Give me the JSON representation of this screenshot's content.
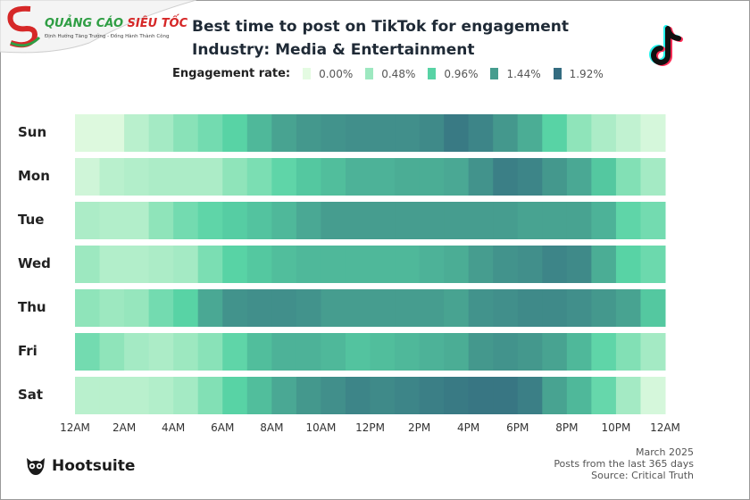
{
  "watermark": {
    "brand": "QUẢNG CÁO SIÊU TỐC",
    "tagline": "Định Hướng Tăng Trưởng - Đồng Hành Thành Công"
  },
  "header": {
    "title": "Best time to post on TikTok for engagement",
    "subtitle": "Industry: Media & Entertainment",
    "platform_icon": "tiktok-logo"
  },
  "footer": {
    "brand": "Hootsuite",
    "date": "March 2025",
    "note": "Posts from the last 365 days",
    "source": "Source: Critical Truth"
  },
  "chart_data": {
    "type": "heatmap",
    "legend": {
      "title": "Engagement rate:",
      "stops": [
        {
          "label": "0.00%",
          "value": 0.0,
          "color": "#e4fbe2"
        },
        {
          "label": "0.48%",
          "value": 0.48,
          "color": "#9de8c0"
        },
        {
          "label": "0.96%",
          "value": 0.96,
          "color": "#58d3a5"
        },
        {
          "label": "1.44%",
          "value": 1.44,
          "color": "#469d8f"
        },
        {
          "label": "1.92%",
          "value": 1.92,
          "color": "#346c80"
        }
      ]
    },
    "unit": "%",
    "rows": [
      "Sun",
      "Mon",
      "Tue",
      "Wed",
      "Thu",
      "Fri",
      "Sat"
    ],
    "x_tick_labels": [
      "12AM",
      "2AM",
      "4AM",
      "6AM",
      "8AM",
      "10AM",
      "12PM",
      "2PM",
      "4PM",
      "6PM",
      "8PM",
      "10PM",
      "12AM"
    ],
    "hours": 24,
    "values": [
      [
        0.05,
        0.05,
        0.29,
        0.43,
        0.62,
        0.77,
        0.96,
        1.2,
        1.39,
        1.49,
        1.54,
        1.58,
        1.58,
        1.58,
        1.63,
        1.78,
        1.68,
        1.49,
        1.3,
        0.96,
        0.58,
        0.38,
        0.24,
        0.1
      ],
      [
        0.14,
        0.29,
        0.34,
        0.38,
        0.38,
        0.38,
        0.58,
        0.72,
        0.91,
        1.06,
        1.15,
        1.25,
        1.25,
        1.3,
        1.3,
        1.34,
        1.54,
        1.73,
        1.68,
        1.49,
        1.34,
        1.06,
        0.67,
        0.43
      ],
      [
        0.38,
        0.34,
        0.34,
        0.58,
        0.77,
        0.91,
        1.01,
        1.1,
        1.2,
        1.34,
        1.44,
        1.44,
        1.44,
        1.44,
        1.44,
        1.44,
        1.44,
        1.44,
        1.39,
        1.39,
        1.39,
        1.25,
        0.91,
        0.77
      ],
      [
        0.48,
        0.34,
        0.34,
        0.38,
        0.43,
        0.72,
        0.96,
        1.06,
        1.15,
        1.2,
        1.2,
        1.2,
        1.2,
        1.2,
        1.25,
        1.3,
        1.44,
        1.54,
        1.58,
        1.68,
        1.63,
        1.3,
        0.96,
        0.82
      ],
      [
        0.58,
        0.48,
        0.53,
        0.77,
        0.96,
        1.34,
        1.54,
        1.58,
        1.58,
        1.54,
        1.44,
        1.44,
        1.44,
        1.44,
        1.44,
        1.39,
        1.54,
        1.58,
        1.63,
        1.63,
        1.58,
        1.49,
        1.39,
        1.06
      ],
      [
        0.77,
        0.58,
        0.43,
        0.38,
        0.48,
        0.62,
        0.91,
        1.15,
        1.25,
        1.25,
        1.2,
        1.1,
        1.15,
        1.2,
        1.25,
        1.3,
        1.49,
        1.54,
        1.49,
        1.39,
        1.2,
        0.91,
        0.67,
        0.43
      ],
      [
        0.29,
        0.29,
        0.29,
        0.34,
        0.43,
        0.67,
        0.96,
        1.15,
        1.34,
        1.49,
        1.58,
        1.68,
        1.63,
        1.68,
        1.73,
        1.78,
        1.82,
        1.82,
        1.73,
        1.39,
        1.2,
        0.86,
        0.43,
        0.1
      ]
    ]
  }
}
